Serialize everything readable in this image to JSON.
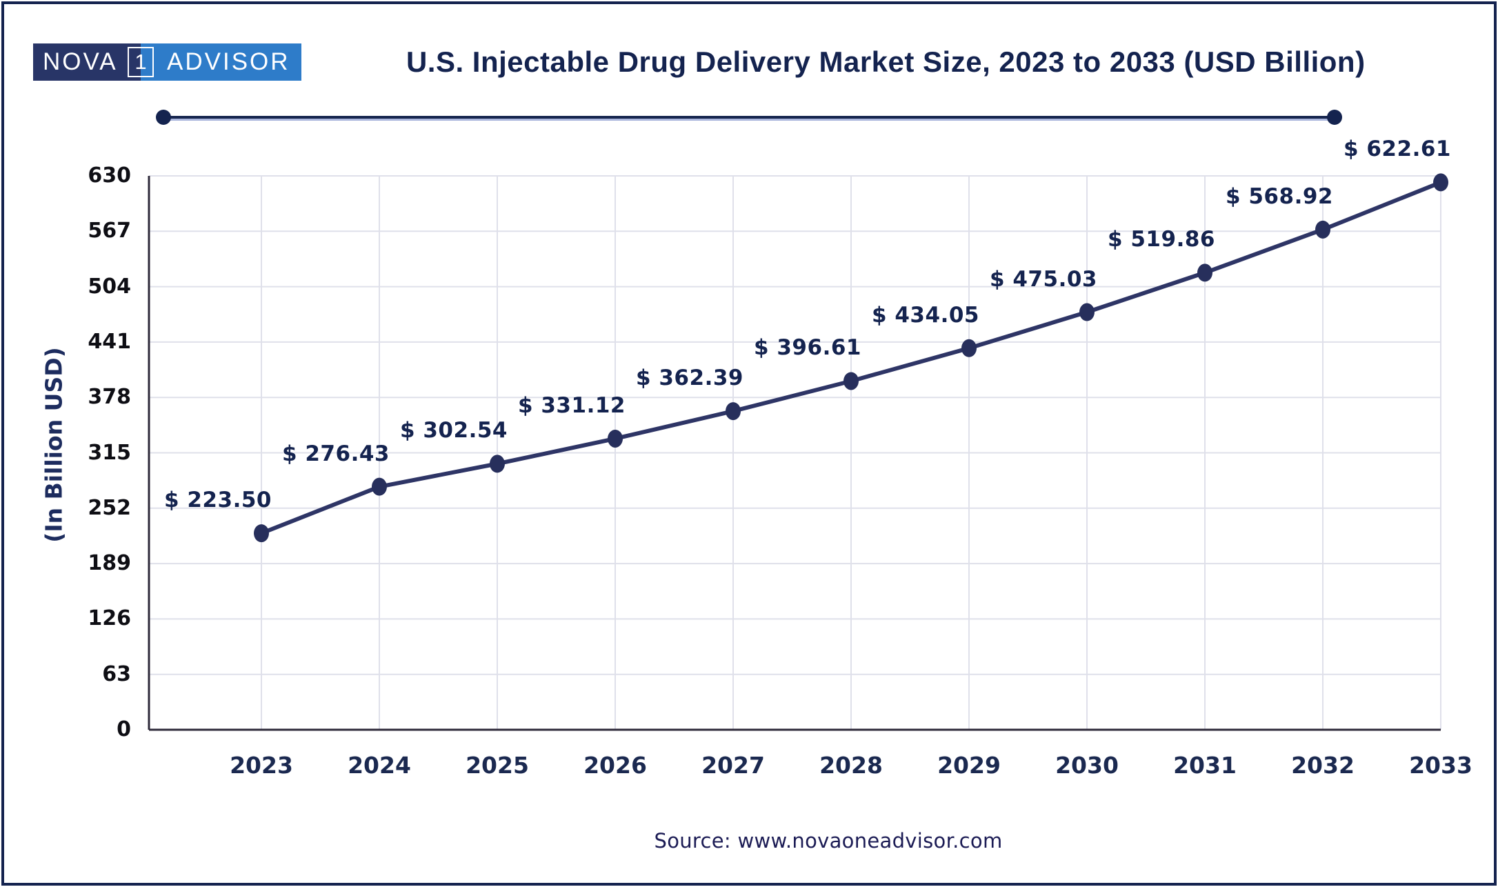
{
  "logo": {
    "part1": "NOVA",
    "badge": "1",
    "part2": "ADVISOR"
  },
  "header": {
    "title": "U.S. Injectable Drug Delivery Market Size, 2023 to 2033 (USD Billion)"
  },
  "footer": {
    "source": "Source: www.novaoneadvisor.com"
  },
  "colors": {
    "frame_navy": "#14234f",
    "logo_dark_navy": "#283567",
    "logo_blue": "#2e7cc9",
    "line": "#2e3566",
    "marker": "#272f5c",
    "gridline": "#dfe0ea",
    "axis": "#2e2a3a",
    "label_text": "#14234f",
    "x_tick_text": "#1b2950",
    "y_tick_text": "#0e0e14"
  },
  "chart_data": {
    "type": "line",
    "title": "U.S. Injectable Drug Delivery Market Size, 2023 to 2033 (USD Billion)",
    "xlabel": "",
    "ylabel": "(In Billion USD)",
    "categories": [
      "2023",
      "2024",
      "2025",
      "2026",
      "2027",
      "2028",
      "2029",
      "2030",
      "2031",
      "2032",
      "2033"
    ],
    "values": [
      223.5,
      276.43,
      302.54,
      331.12,
      362.39,
      396.61,
      434.05,
      475.03,
      519.86,
      568.92,
      622.61
    ],
    "point_labels": [
      "$ 223.50",
      "$ 276.43",
      "$ 302.54",
      "$ 331.12",
      "$ 362.39",
      "$ 396.61",
      "$ 434.05",
      "$ 475.03",
      "$ 519.86",
      "$ 568.92",
      "$ 622.61"
    ],
    "yticks": [
      0,
      63,
      126,
      189,
      252,
      315,
      378,
      441,
      504,
      567,
      630
    ],
    "ylim": [
      0,
      630
    ],
    "grid": true,
    "legend_position": "none"
  }
}
